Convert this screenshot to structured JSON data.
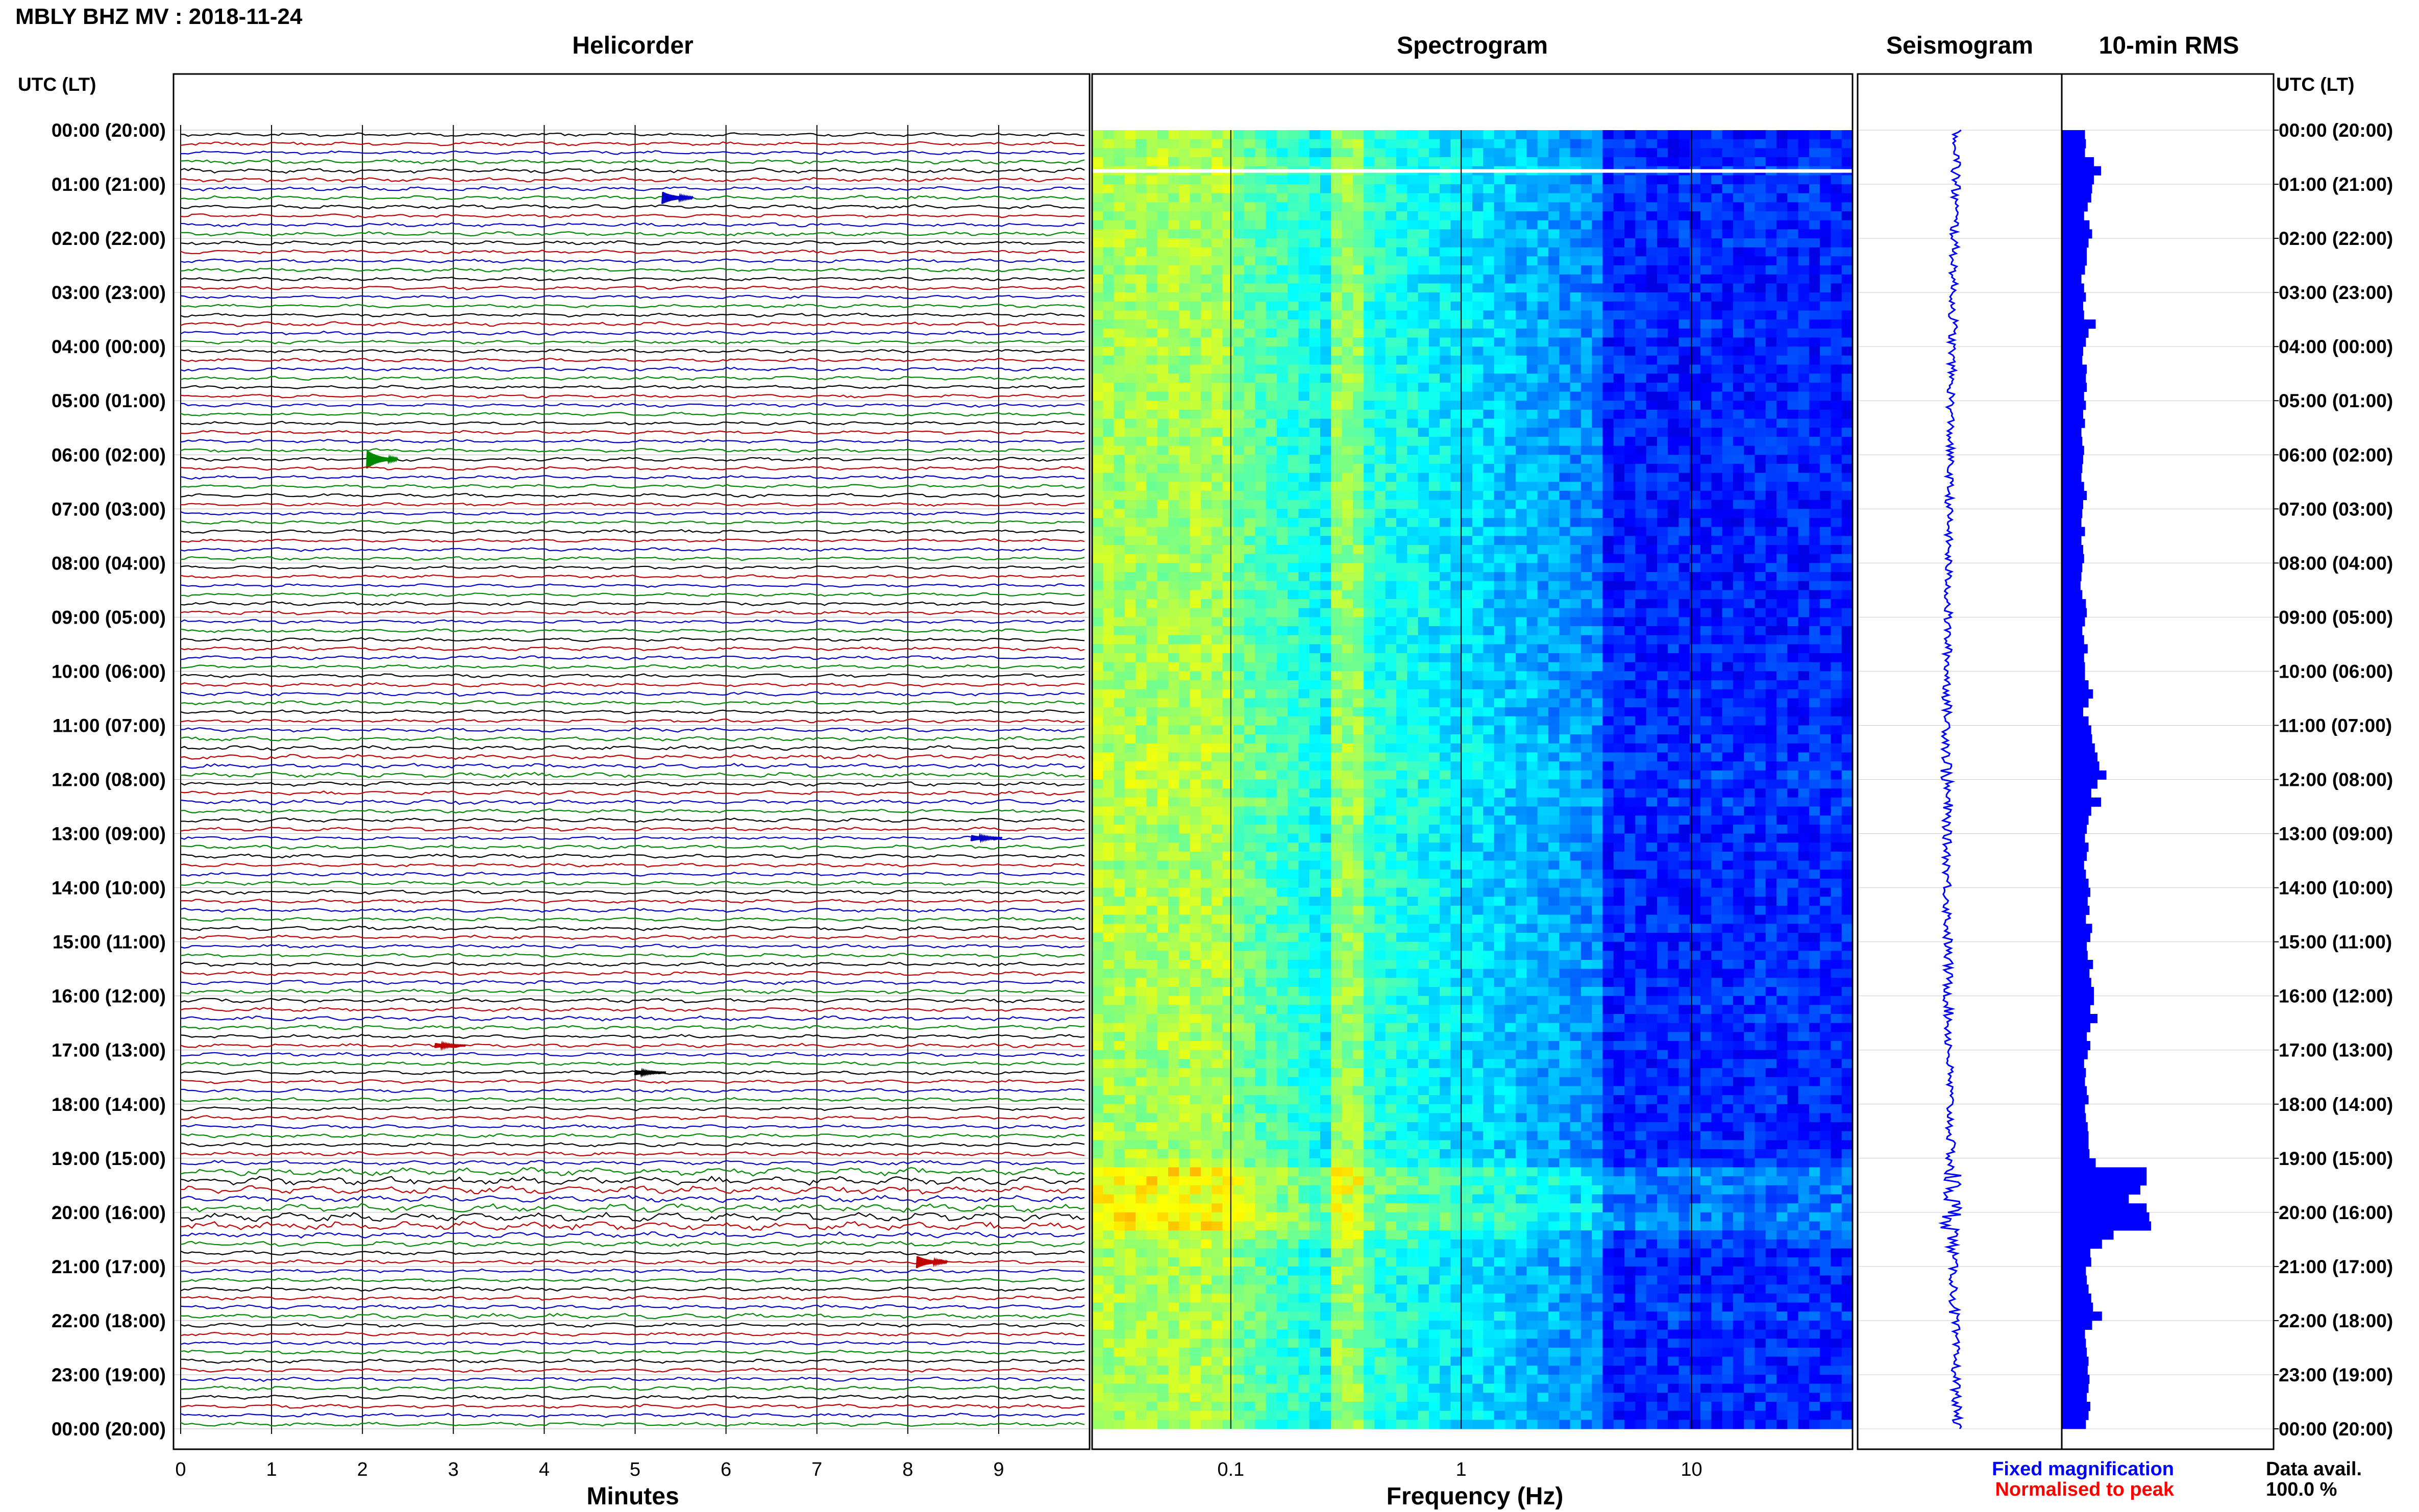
{
  "header": {
    "title": "MBLY BHZ MV : 2018-11-24"
  },
  "panels": {
    "helicorder": "Helicorder",
    "spectrogram": "Spectrogram",
    "seismogram": "Seismogram",
    "rms": "10-min RMS"
  },
  "time_axis_title": "UTC (LT)",
  "footer": {
    "fixed_magnification": "Fixed magnification",
    "normalised_to_peak": "Normalised to peak",
    "data_avail_label": "Data avail.",
    "data_avail_value": "100.0 %"
  },
  "colors": {
    "trace_cycle": [
      "#000000",
      "#c00000",
      "#0000c8",
      "#008800"
    ],
    "fixed_magnification": "#0000ff",
    "normalised_to_peak": "#ff0000",
    "rms_bar": "#0000ff",
    "spectrogram_low": "#00008b",
    "spectrogram_high": "#ffff00"
  },
  "chart_data": [
    {
      "type": "line",
      "name": "helicorder",
      "title": "Helicorder",
      "xlabel": "Minutes",
      "ylabel": "UTC (LT)",
      "xlim": [
        0,
        10
      ],
      "x_ticks": [
        "0",
        "1",
        "2",
        "3",
        "4",
        "5",
        "6",
        "7",
        "8",
        "9"
      ],
      "hour_labels": [
        "00:00 (20:00)",
        "01:00 (21:00)",
        "02:00 (22:00)",
        "03:00 (23:00)",
        "04:00 (00:00)",
        "05:00 (01:00)",
        "06:00 (02:00)",
        "07:00 (03:00)",
        "08:00 (04:00)",
        "09:00 (05:00)",
        "10:00 (06:00)",
        "11:00 (07:00)",
        "12:00 (08:00)",
        "13:00 (09:00)",
        "14:00 (10:00)",
        "15:00 (11:00)",
        "16:00 (12:00)",
        "17:00 (13:00)",
        "18:00 (14:00)",
        "19:00 (15:00)",
        "20:00 (16:00)",
        "21:00 (17:00)",
        "22:00 (18:00)",
        "23:00 (19:00)",
        "00:00 (20:00)"
      ],
      "rows_per_hour": 6,
      "rows_total": 144,
      "events": [
        {
          "time": "01:10",
          "minute": 5.3,
          "color": "#0000c8",
          "amplitude": 2.0
        },
        {
          "time": "06:00",
          "minute": 2.05,
          "color": "#008800",
          "amplitude": 3.0
        },
        {
          "time": "13:00",
          "minute": 8.7,
          "color": "#0000c8",
          "amplitude": 1.0
        },
        {
          "time": "16:50",
          "minute": 2.8,
          "color": "#c00000",
          "amplitude": 0.8
        },
        {
          "time": "17:20",
          "minute": 5.0,
          "color": "#000000",
          "amplitude": 0.8
        },
        {
          "time": "20:50",
          "minute": 8.1,
          "color": "#c00000",
          "amplitude": 2.0
        }
      ]
    },
    {
      "type": "heatmap",
      "name": "spectrogram",
      "title": "Spectrogram",
      "xlabel": "Frequency (Hz)",
      "xscale": "log",
      "xlim": [
        0.025,
        50
      ],
      "x_ticks": [
        "0.1",
        "1",
        "10"
      ],
      "y": "time 00:00-24:00 UTC",
      "colormap": "jet",
      "features": [
        {
          "description_freq_hz": [
            0.025,
            0.1
          ],
          "level": "high"
        },
        {
          "freq_hz": 0.3,
          "level": "medium"
        },
        {
          "freq_hz": [
            4,
            50
          ],
          "level": "low"
        }
      ],
      "data_gap_time": "00:45"
    },
    {
      "type": "line",
      "name": "seismogram",
      "title": "Seismogram",
      "x_ticks": [],
      "note": "compressed 24-hour trace"
    },
    {
      "type": "bar",
      "name": "rms",
      "title": "10-min RMS",
      "orientation": "horizontal",
      "categories_hours": 144,
      "values": [
        0.26,
        0.27,
        0.26,
        0.36,
        0.44,
        0.36,
        0.34,
        0.33,
        0.29,
        0.25,
        0.31,
        0.34,
        0.3,
        0.28,
        0.28,
        0.26,
        0.22,
        0.25,
        0.27,
        0.24,
        0.25,
        0.38,
        0.3,
        0.27,
        0.24,
        0.23,
        0.28,
        0.27,
        0.28,
        0.25,
        0.27,
        0.24,
        0.26,
        0.22,
        0.23,
        0.25,
        0.24,
        0.23,
        0.22,
        0.25,
        0.28,
        0.24,
        0.23,
        0.22,
        0.26,
        0.22,
        0.24,
        0.25,
        0.23,
        0.22,
        0.21,
        0.23,
        0.27,
        0.28,
        0.26,
        0.23,
        0.25,
        0.29,
        0.25,
        0.26,
        0.26,
        0.3,
        0.35,
        0.3,
        0.24,
        0.3,
        0.33,
        0.34,
        0.37,
        0.4,
        0.42,
        0.5,
        0.4,
        0.33,
        0.44,
        0.33,
        0.3,
        0.28,
        0.26,
        0.3,
        0.28,
        0.25,
        0.27,
        0.3,
        0.32,
        0.29,
        0.31,
        0.27,
        0.34,
        0.32,
        0.28,
        0.29,
        0.35,
        0.31,
        0.33,
        0.36,
        0.36,
        0.32,
        0.4,
        0.32,
        0.28,
        0.32,
        0.29,
        0.25,
        0.27,
        0.26,
        0.28,
        0.3,
        0.26,
        0.27,
        0.29,
        0.3,
        0.3,
        0.31,
        0.38,
        0.95,
        0.95,
        0.88,
        0.75,
        0.95,
        0.98,
        1.0,
        0.58,
        0.45,
        0.32,
        0.33,
        0.27,
        0.28,
        0.3,
        0.33,
        0.35,
        0.45,
        0.34,
        0.26,
        0.27,
        0.28,
        0.3,
        0.29,
        0.31,
        0.3,
        0.28,
        0.32,
        0.3,
        0.27
      ]
    }
  ]
}
